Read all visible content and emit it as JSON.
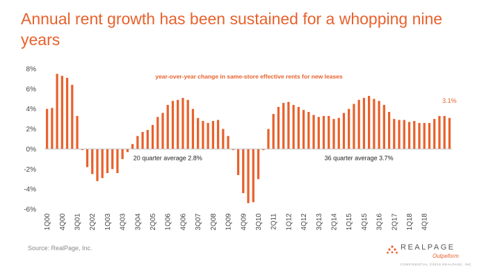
{
  "title": "Annual rent growth has been sustained for a whopping nine years",
  "source": "Source: RealPage, Inc.",
  "logo": {
    "name": "REALPAGE",
    "sub": "Outpeform",
    "confidential": "CONFIDENTIAL ©2019 REALPAGE, INC."
  },
  "chart_data": {
    "type": "bar",
    "title": "year-over-year change in same-store effective rents for new leases",
    "ylim": [
      -6,
      8
    ],
    "yticks": [
      8,
      6,
      4,
      2,
      0,
      -2,
      -4,
      -6
    ],
    "ytick_labels": [
      "8%",
      "6%",
      "4%",
      "2%",
      "0%",
      "-2%",
      "-4%",
      "-6%"
    ],
    "grid": false,
    "bar_color": "#e8612c",
    "values": [
      4.0,
      4.1,
      7.5,
      7.3,
      7.1,
      6.4,
      3.3,
      -0.1,
      -1.8,
      -2.5,
      -3.2,
      -2.9,
      -2.4,
      -2.0,
      -2.4,
      -1.0,
      -0.3,
      0.5,
      1.3,
      1.7,
      1.9,
      2.4,
      3.2,
      3.6,
      4.4,
      4.8,
      4.9,
      5.1,
      4.9,
      4.0,
      3.1,
      2.8,
      2.6,
      2.8,
      2.9,
      2.0,
      1.3,
      -0.1,
      -2.6,
      -4.4,
      -5.4,
      -5.3,
      -3.0,
      -0.1,
      2.0,
      3.5,
      4.2,
      4.6,
      4.7,
      4.4,
      4.2,
      3.9,
      3.7,
      3.4,
      3.2,
      3.3,
      3.3,
      3.0,
      3.1,
      3.6,
      4.0,
      4.5,
      4.9,
      5.1,
      5.3,
      5.0,
      4.8,
      4.4,
      3.7,
      3.0,
      2.9,
      2.9,
      2.7,
      2.8,
      2.6,
      2.6,
      2.6,
      3.0,
      3.3,
      3.3,
      3.1
    ],
    "tick_labels": [
      {
        "index": 0,
        "label": "1Q00"
      },
      {
        "index": 3,
        "label": "4Q00"
      },
      {
        "index": 6,
        "label": "3Q01"
      },
      {
        "index": 9,
        "label": "2Q02"
      },
      {
        "index": 12,
        "label": "1Q03"
      },
      {
        "index": 15,
        "label": "4Q03"
      },
      {
        "index": 18,
        "label": "3Q04"
      },
      {
        "index": 21,
        "label": "2Q05"
      },
      {
        "index": 24,
        "label": "1Q06"
      },
      {
        "index": 27,
        "label": "4Q06"
      },
      {
        "index": 30,
        "label": "3Q07"
      },
      {
        "index": 33,
        "label": "2Q08"
      },
      {
        "index": 36,
        "label": "1Q09"
      },
      {
        "index": 39,
        "label": "4Q09"
      },
      {
        "index": 42,
        "label": "3Q10"
      },
      {
        "index": 45,
        "label": "2Q11"
      },
      {
        "index": 48,
        "label": "1Q12"
      },
      {
        "index": 51,
        "label": "4Q12"
      },
      {
        "index": 54,
        "label": "3Q13"
      },
      {
        "index": 57,
        "label": "2Q14"
      },
      {
        "index": 60,
        "label": "1Q15"
      },
      {
        "index": 63,
        "label": "4Q15"
      },
      {
        "index": 66,
        "label": "3Q16"
      },
      {
        "index": 69,
        "label": "2Q17"
      },
      {
        "index": 72,
        "label": "1Q18"
      },
      {
        "index": 75,
        "label": "4Q18"
      }
    ],
    "annotations": [
      {
        "text": "20 quarter average 2.8%",
        "at_index": 24,
        "at_value": -0.9,
        "color": "#222222",
        "anchor": "middle"
      },
      {
        "text": "36 quarter average 3.7%",
        "at_index": 62,
        "at_value": -0.9,
        "color": "#222222",
        "anchor": "middle"
      },
      {
        "text": "3.1%",
        "at_index": 80,
        "at_value": 4.8,
        "color": "#e8612c",
        "anchor": "middle"
      }
    ]
  }
}
